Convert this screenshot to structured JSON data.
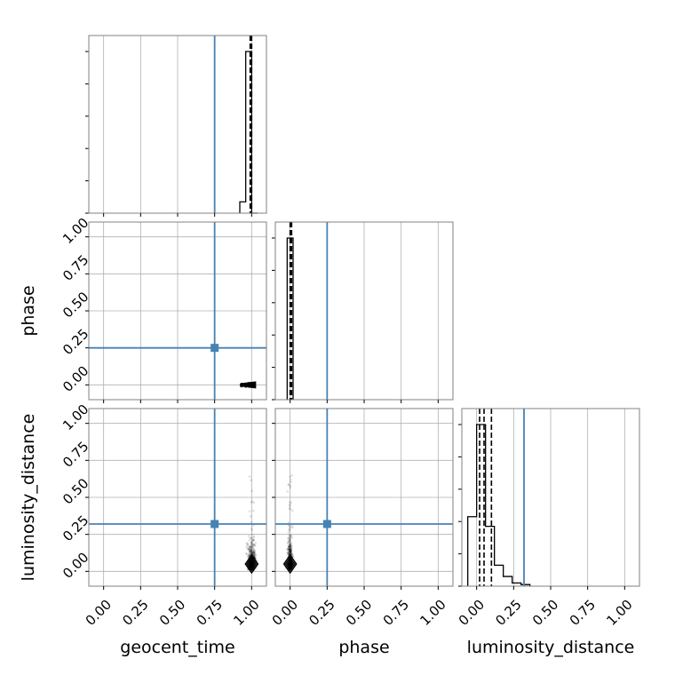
{
  "chart_data": {
    "type": "corner",
    "parameters": [
      "geocent_time",
      "phase",
      "luminosity_distance"
    ],
    "axis_range": [
      -0.1,
      1.1
    ],
    "tick_values": [
      0.0,
      0.25,
      0.5,
      0.75,
      1.0
    ],
    "tick_labels": [
      "0.00",
      "0.25",
      "0.50",
      "0.75",
      "1.00"
    ],
    "grid": true,
    "colors": {
      "truth": "#4682b4",
      "histogram": "#000000",
      "quantile": "#000000",
      "samples": "#000000",
      "grid": "#b0b0b0",
      "spine": "#808080"
    },
    "truths": {
      "geocent_time": 0.75,
      "phase": 0.25,
      "luminosity_distance": 0.32
    },
    "quantiles": {
      "geocent_time": [
        0.99,
        0.995,
        1.0
      ],
      "phase": [
        0.0,
        0.005,
        0.01
      ],
      "luminosity_distance": [
        0.02,
        0.05,
        0.1
      ]
    },
    "histograms": {
      "geocent_time": {
        "edges": [
          0.92,
          0.96,
          1.0,
          1.04
        ],
        "counts": [
          0.07,
          1.0,
          0.0
        ]
      },
      "phase": {
        "edges": [
          -0.02,
          0.0,
          0.02
        ],
        "counts": [
          1.0,
          1.0
        ]
      },
      "luminosity_distance": {
        "edges": [
          -0.06,
          0.0,
          0.06,
          0.12,
          0.18,
          0.24,
          0.3,
          0.36
        ],
        "counts": [
          0.43,
          1.0,
          0.37,
          0.13,
          0.06,
          0.02,
          0.01
        ]
      }
    },
    "scatter_2d": {
      "phase_vs_geocent_time": {
        "x_range": [
          0.93,
          1.04
        ],
        "y_range": [
          -0.02,
          0.02
        ],
        "peak": [
          1.0,
          0.0
        ]
      },
      "luminosity_distance_vs_geocent_time": {
        "x_range": [
          0.93,
          1.04
        ],
        "y_range": [
          0.0,
          0.65
        ],
        "peak": [
          1.0,
          0.05
        ]
      },
      "luminosity_distance_vs_phase": {
        "x_range": [
          -0.03,
          0.03
        ],
        "y_range": [
          0.0,
          0.65
        ],
        "peak": [
          0.0,
          0.05
        ]
      }
    }
  }
}
